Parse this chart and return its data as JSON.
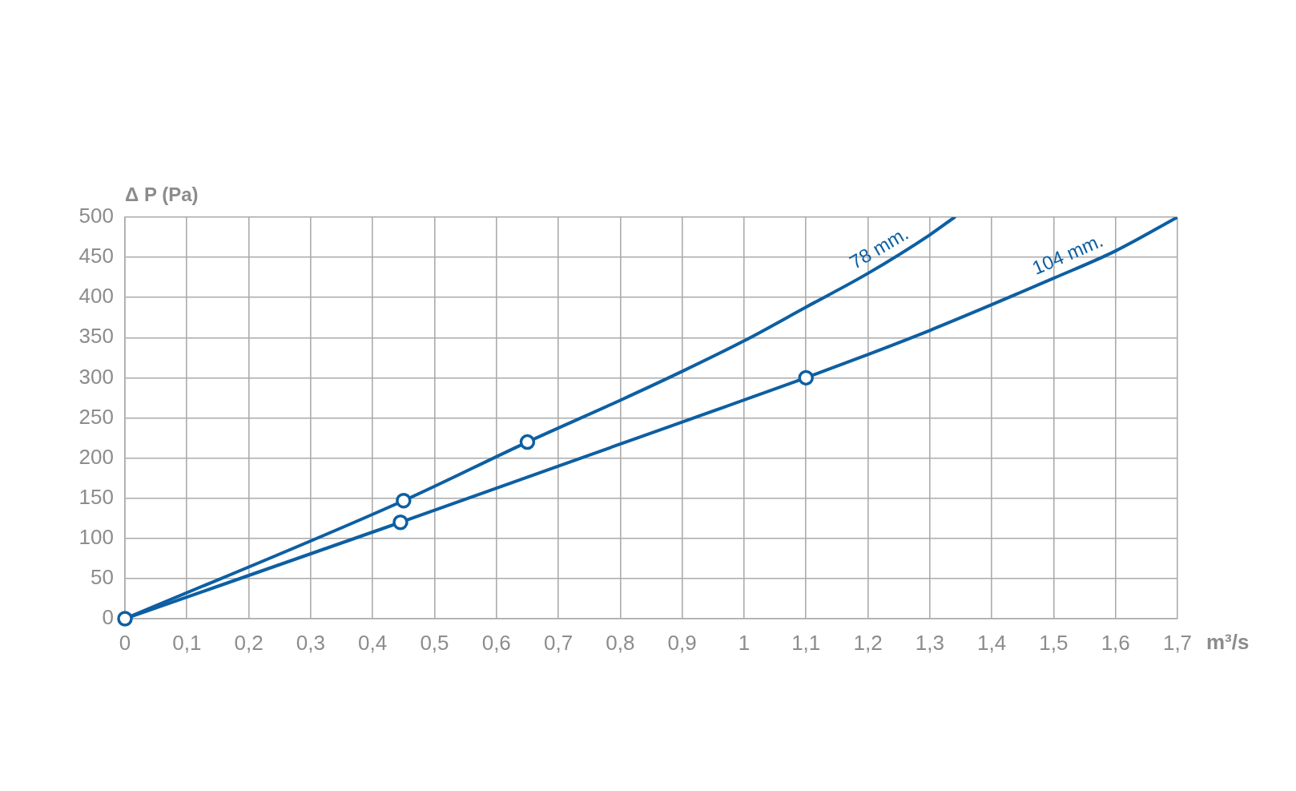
{
  "chart_data": {
    "type": "line",
    "xlabel": "m³/s",
    "ylabel": "Δ P (Pa)",
    "xlim": [
      0,
      1.7
    ],
    "xticks": [
      0,
      {
        "value": 0.1,
        "label": "0,1"
      },
      {
        "value": 0.2,
        "label": "0,2"
      },
      {
        "value": 0.3,
        "label": "0,3"
      },
      {
        "value": 0.4,
        "label": "0,4"
      },
      {
        "value": 0.5,
        "label": "0,5"
      },
      {
        "value": 0.6,
        "label": "0,6"
      },
      {
        "value": 0.7,
        "label": "0,7"
      },
      {
        "value": 0.8,
        "label": "0,8"
      },
      {
        "value": 0.9,
        "label": "0,9"
      },
      1,
      {
        "value": 1.1,
        "label": "1,1"
      },
      {
        "value": 1.2,
        "label": "1,2"
      },
      {
        "value": 1.3,
        "label": "1,3"
      },
      {
        "value": 1.4,
        "label": "1,4"
      },
      {
        "value": 1.5,
        "label": "1,5"
      },
      {
        "value": 1.6,
        "label": "1,6"
      },
      {
        "value": 1.7,
        "label": "1,7"
      }
    ],
    "ylim": [
      0,
      500
    ],
    "yticks": [
      0,
      50,
      100,
      150,
      200,
      250,
      300,
      350,
      400,
      450,
      500
    ],
    "grid": true,
    "series": [
      {
        "name": "78 mm.",
        "type": "line",
        "color": "#0d5fa2",
        "marker": "none",
        "x": [
          0,
          0.45,
          0.65,
          0.8,
          0.9,
          1.0,
          1.1,
          1.2,
          1.3,
          1.34
        ],
        "values": [
          0,
          147,
          220,
          272,
          308,
          346,
          388,
          430,
          478,
          500
        ]
      },
      {
        "name": "104 mm.",
        "type": "line",
        "color": "#0d5fa2",
        "marker": "none",
        "x": [
          0,
          0.445,
          0.7,
          0.9,
          1.1,
          1.2,
          1.3,
          1.4,
          1.5,
          1.6,
          1.7
        ],
        "values": [
          0,
          120,
          190,
          245,
          300,
          329,
          359,
          391,
          424,
          458,
          500
        ]
      },
      {
        "type": "scatter",
        "color": "#0d5fa2",
        "marker": "circle",
        "x": [
          0,
          0.45,
          0.65,
          0.445,
          1.1
        ],
        "values": [
          0,
          147,
          220,
          120,
          300
        ]
      }
    ]
  }
}
